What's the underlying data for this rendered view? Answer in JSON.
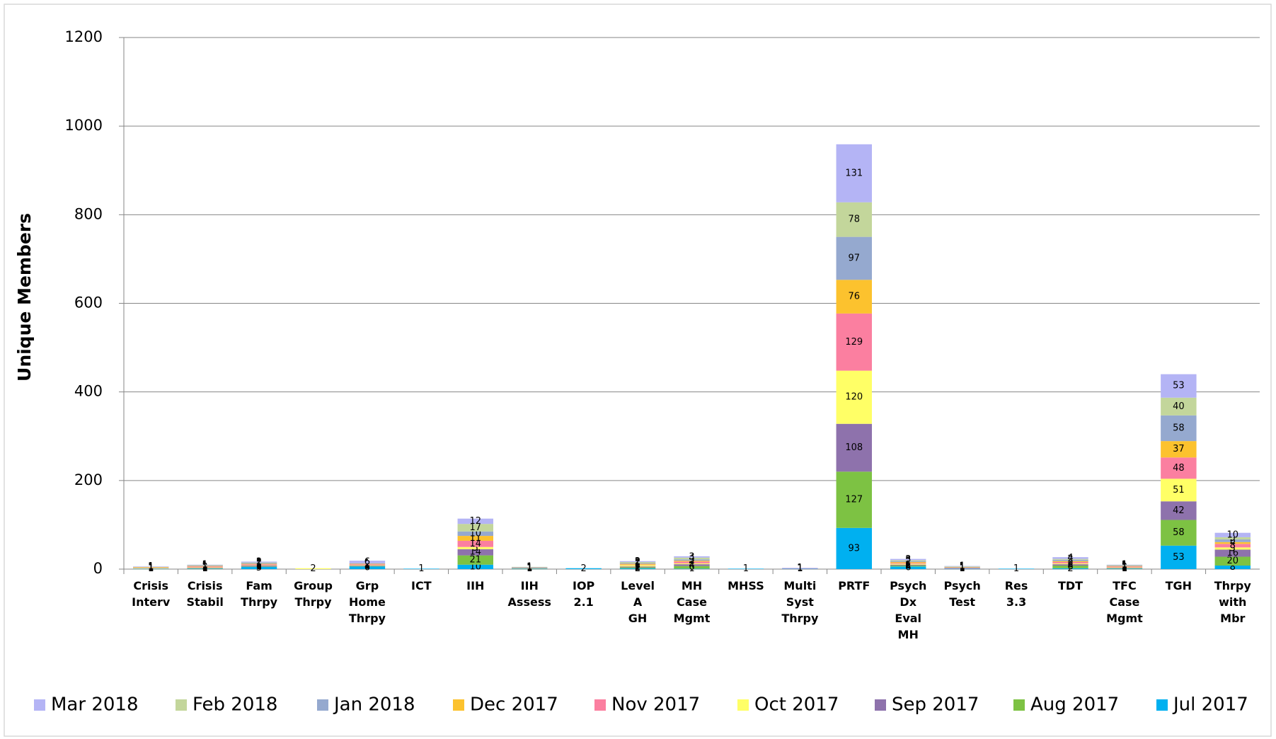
{
  "chart_data": {
    "type": "stacked-bar",
    "y_label": "Unique Members",
    "categories": [
      "Crisis Interv",
      "Crisis Stabil",
      "Fam Thrpy",
      "Group Thrpy",
      "Grp Home Thrpy",
      "ICT",
      "IIH",
      "IIH Assess",
      "IOP 2.1",
      "Level A GH",
      "MH Case Mgmt",
      "MHSS",
      "Multi Syst Thrpy",
      "PRTF",
      "Psych Dx Eval MH",
      "Psych Test",
      "Res 3.3",
      "TDT",
      "TFC Case Mgmt",
      "TGH",
      "Thrpy with Mbr"
    ],
    "series": [
      {
        "name": "Mar 2018",
        "color": "#b4b4f5",
        "values": [
          1,
          1,
          2,
          null,
          6,
          null,
          12,
          null,
          null,
          2,
          3,
          null,
          1,
          131,
          3,
          1,
          null,
          4,
          1,
          53,
          10
        ]
      },
      {
        "name": "Feb 2018",
        "color": "#c3d69b",
        "values": [
          1,
          1,
          1,
          null,
          null,
          null,
          17,
          1,
          null,
          2,
          4,
          null,
          null,
          78,
          2,
          1,
          null,
          2,
          1,
          40,
          5
        ]
      },
      {
        "name": "Jan 2018",
        "color": "#95a9cf",
        "values": [
          null,
          1,
          2,
          null,
          1,
          null,
          10,
          1,
          null,
          2,
          3,
          null,
          null,
          97,
          2,
          1,
          null,
          3,
          1,
          58,
          6
        ]
      },
      {
        "name": "Dec 2017",
        "color": "#fcc22e",
        "values": [
          1,
          1,
          1,
          null,
          1,
          null,
          11,
          null,
          null,
          2,
          2,
          null,
          null,
          76,
          2,
          1,
          null,
          2,
          1,
          37,
          4
        ]
      },
      {
        "name": "Nov 2017",
        "color": "#fb7fa0",
        "values": [
          1,
          2,
          2,
          null,
          2,
          null,
          14,
          1,
          null,
          1,
          4,
          null,
          1,
          129,
          2,
          1,
          null,
          3,
          2,
          48,
          8
        ]
      },
      {
        "name": "Oct 2017",
        "color": "#ffff66",
        "values": [
          1,
          1,
          1,
          2,
          1,
          null,
          5,
          null,
          null,
          3,
          2,
          null,
          null,
          120,
          2,
          null,
          null,
          2,
          1,
          51,
          5
        ]
      },
      {
        "name": "Sep 2017",
        "color": "#8e72ac",
        "values": [
          null,
          1,
          2,
          null,
          1,
          null,
          14,
          null,
          null,
          2,
          4,
          null,
          null,
          108,
          2,
          1,
          null,
          3,
          1,
          42,
          16
        ]
      },
      {
        "name": "Aug 2017",
        "color": "#7dc243",
        "values": [
          null,
          1,
          1,
          null,
          1,
          null,
          21,
          1,
          null,
          2,
          6,
          null,
          null,
          127,
          2,
          null,
          null,
          6,
          1,
          58,
          20
        ]
      },
      {
        "name": "Jul 2017",
        "color": "#00b0f0",
        "values": [
          1,
          1,
          5,
          null,
          6,
          1,
          10,
          1,
          2,
          2,
          1,
          1,
          1,
          93,
          6,
          1,
          1,
          2,
          1,
          53,
          8
        ]
      }
    ],
    "ylim": [
      0,
      1200
    ],
    "yticks": [
      0,
      200,
      400,
      600,
      800,
      1000,
      1200
    ],
    "grid": true,
    "legend": "bottom"
  }
}
